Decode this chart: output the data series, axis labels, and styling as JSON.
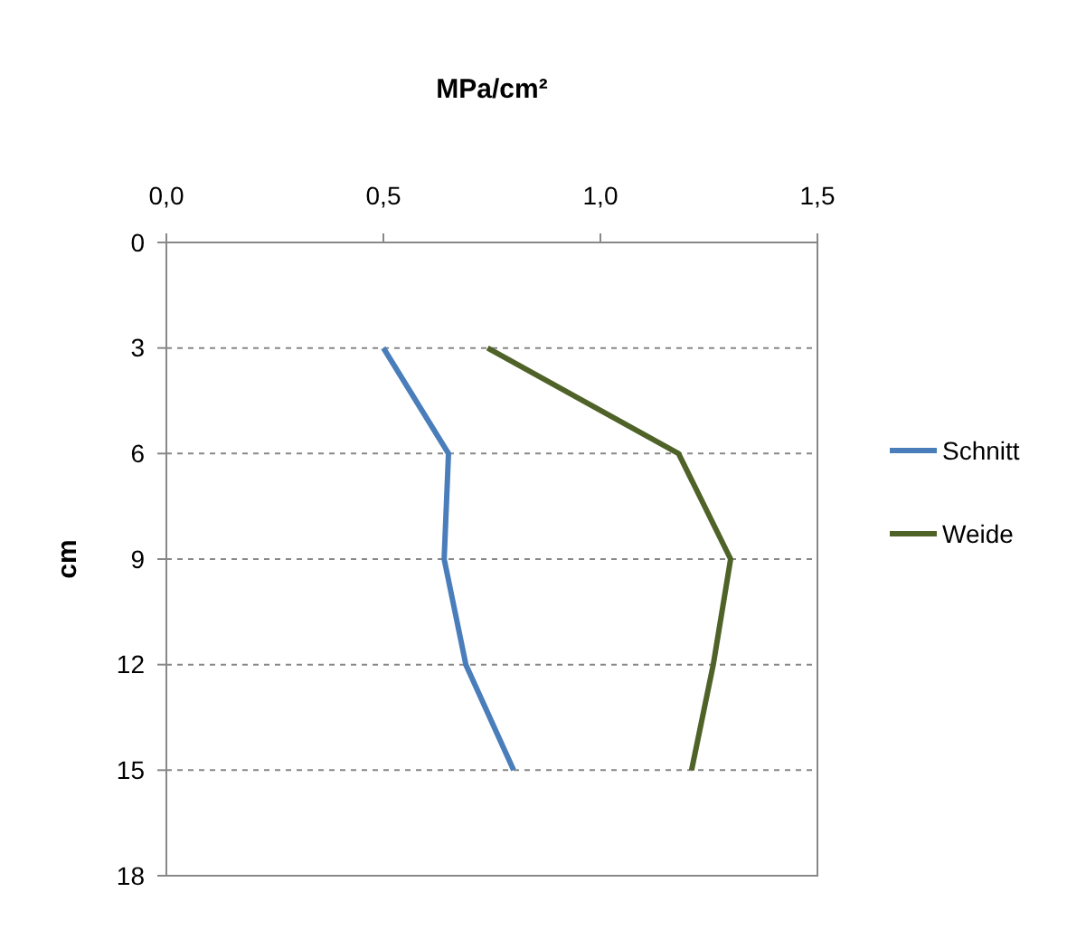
{
  "chart_data": {
    "type": "line",
    "xlabel": "MPa/cm²",
    "ylabel": "cm",
    "xlim": [
      0,
      1.5
    ],
    "xticks": [
      {
        "value": 0,
        "label": "0,0"
      },
      {
        "value": 0.5,
        "label": "0,5"
      },
      {
        "value": 1,
        "label": "1,0"
      },
      {
        "value": 1.5,
        "label": "1,5"
      }
    ],
    "ylim": [
      18,
      0
    ],
    "yticks": [
      0,
      3,
      6,
      9,
      12,
      15,
      18
    ],
    "grid": "y",
    "legend": "right",
    "marker": "none",
    "line_style": "solid",
    "series": [
      {
        "name": "Schnitt",
        "color": "#4a7ebb",
        "x": [
          0.5,
          0.65,
          0.64,
          0.69,
          0.8
        ],
        "values": [
          3,
          6,
          9,
          12,
          15
        ]
      },
      {
        "name": "Weide",
        "color": "#4f6228",
        "x": [
          0.74,
          1.18,
          1.3,
          1.26,
          1.21
        ],
        "values": [
          3,
          6,
          9,
          12,
          15
        ]
      }
    ]
  }
}
